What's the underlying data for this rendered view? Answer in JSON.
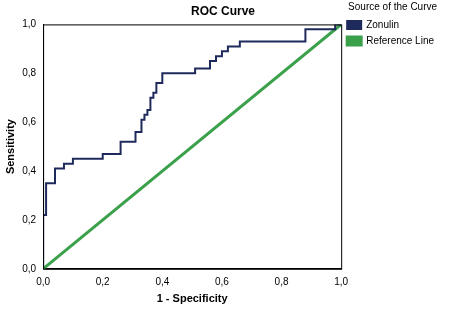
{
  "chart_data": {
    "type": "line",
    "title": "ROC Curve",
    "x_label": "1 - Specificity",
    "y_label": "Sensitivity",
    "legend_title": "Source of the Curve",
    "legend": "right",
    "grid": false,
    "xlim": [
      0,
      1
    ],
    "ylim": [
      0,
      1
    ],
    "xticks": [
      {
        "value": 0,
        "label": "0,0"
      },
      {
        "value": 0.2,
        "label": "0,2"
      },
      {
        "value": 0.4,
        "label": "0,4"
      },
      {
        "value": 0.6,
        "label": "0,6"
      },
      {
        "value": 0.8,
        "label": "0,8"
      },
      {
        "value": 1,
        "label": "1,0"
      }
    ],
    "yticks": [
      {
        "value": 0,
        "label": "0,0"
      },
      {
        "value": 0.2,
        "label": "0,2"
      },
      {
        "value": 0.4,
        "label": "0,4"
      },
      {
        "value": 0.6,
        "label": "0,6"
      },
      {
        "value": 0.8,
        "label": "0,8"
      },
      {
        "value": 1,
        "label": "1,0"
      }
    ],
    "series": [
      {
        "name": "Zonulin",
        "color": "#1f2a5c",
        "line_style": "solid",
        "x": [
          0,
          0,
          0.01,
          0.01,
          0.04,
          0.04,
          0.07,
          0.07,
          0.1,
          0.1,
          0.2,
          0.2,
          0.26,
          0.26,
          0.31,
          0.31,
          0.33,
          0.33,
          0.34,
          0.34,
          0.35,
          0.35,
          0.36,
          0.36,
          0.37,
          0.37,
          0.38,
          0.38,
          0.4,
          0.4,
          0.51,
          0.51,
          0.56,
          0.56,
          0.58,
          0.58,
          0.6,
          0.6,
          0.62,
          0.62,
          0.66,
          0.66,
          0.88,
          0.88,
          0.98,
          0.98,
          1
        ],
        "values": [
          0,
          0.22,
          0.22,
          0.35,
          0.35,
          0.41,
          0.41,
          0.43,
          0.43,
          0.45,
          0.45,
          0.47,
          0.47,
          0.52,
          0.52,
          0.56,
          0.56,
          0.61,
          0.61,
          0.63,
          0.63,
          0.65,
          0.65,
          0.7,
          0.7,
          0.72,
          0.72,
          0.76,
          0.76,
          0.8,
          0.8,
          0.82,
          0.82,
          0.85,
          0.85,
          0.87,
          0.87,
          0.89,
          0.89,
          0.91,
          0.91,
          0.93,
          0.93,
          0.98,
          0.98,
          1,
          1
        ]
      },
      {
        "name": "Reference Line",
        "color": "#3aa04a",
        "line_style": "solid",
        "x": [
          0,
          1
        ],
        "values": [
          0,
          1
        ]
      }
    ]
  }
}
